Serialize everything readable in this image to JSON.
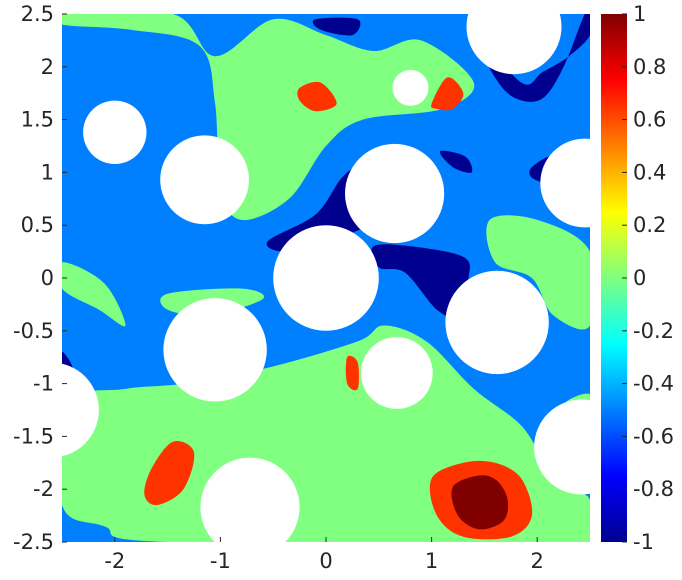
{
  "chart_data": {
    "type": "heatmap",
    "title": "",
    "xlabel": "",
    "ylabel": "",
    "xlim": [
      -2.5,
      2.5
    ],
    "ylim": [
      -2.5,
      2.5
    ],
    "x_ticks": [
      -2,
      -1,
      0,
      1,
      2
    ],
    "y_ticks": [
      2.5,
      2,
      1.5,
      1,
      0.5,
      0,
      -0.5,
      -1,
      -1.5,
      -2,
      -2.5
    ],
    "x_tick_labels": [
      "-2",
      "-1",
      "0",
      "1",
      "2"
    ],
    "y_tick_labels": [
      "2.5",
      "2",
      "1.5",
      "1",
      "0.5",
      "0",
      "-0.5",
      "-1",
      "-1.5",
      "-2",
      "-2.5"
    ],
    "colorbar": {
      "range": [
        -1,
        1
      ],
      "colormap": "jet",
      "ticks": [
        1,
        0.8,
        0.6,
        0.4,
        0.2,
        0,
        -0.2,
        -0.4,
        -0.6,
        -0.8,
        -1
      ],
      "tick_labels": [
        "1",
        "0.8",
        "0.6",
        "0.4",
        "0.2",
        "0",
        "-0.2",
        "-0.4",
        "-0.6",
        "-0.8",
        "-1"
      ]
    },
    "background_level": -0.5,
    "obstacles": [
      {
        "cx": 1.78,
        "cy": 2.38,
        "r": 0.45
      },
      {
        "cx": 0.8,
        "cy": 1.8,
        "r": 0.17
      },
      {
        "cx": -2.0,
        "cy": 1.38,
        "r": 0.3
      },
      {
        "cx": -1.15,
        "cy": 0.93,
        "r": 0.42
      },
      {
        "cx": 0.65,
        "cy": 0.8,
        "r": 0.47
      },
      {
        "cx": 2.45,
        "cy": 0.9,
        "r": 0.42
      },
      {
        "cx": 0.0,
        "cy": 0.0,
        "r": 0.5
      },
      {
        "cx": 1.62,
        "cy": -0.42,
        "r": 0.49
      },
      {
        "cx": -1.05,
        "cy": -0.68,
        "r": 0.49
      },
      {
        "cx": 0.67,
        "cy": -0.9,
        "r": 0.34
      },
      {
        "cx": -2.6,
        "cy": -1.25,
        "r": 0.45
      },
      {
        "cx": 2.42,
        "cy": -1.6,
        "r": 0.45
      },
      {
        "cx": -0.72,
        "cy": -2.17,
        "r": 0.47
      }
    ],
    "regions": [
      {
        "level": 0,
        "points": [
          [
            -2.5,
            2.5
          ],
          [
            -1.45,
            2.5
          ],
          [
            -1.05,
            2.1
          ],
          [
            -0.5,
            2.45
          ],
          [
            0.0,
            2.3
          ],
          [
            0.45,
            2.15
          ],
          [
            0.9,
            2.25
          ],
          [
            1.4,
            1.85
          ],
          [
            1.1,
            1.6
          ],
          [
            0.35,
            1.5
          ],
          [
            0.0,
            1.25
          ],
          [
            -0.35,
            0.75
          ],
          [
            -0.8,
            0.55
          ],
          [
            -1.0,
            0.85
          ],
          [
            -1.05,
            1.65
          ],
          [
            -1.2,
            2.2
          ],
          [
            -1.85,
            2.35
          ],
          [
            -2.5,
            2.4
          ]
        ]
      },
      {
        "level": 0,
        "points": [
          [
            -2.5,
            0.15
          ],
          [
            -2.1,
            -0.05
          ],
          [
            -1.9,
            -0.45
          ],
          [
            -2.15,
            -0.3
          ],
          [
            -2.5,
            -0.1
          ]
        ]
      },
      {
        "level": 0,
        "points": [
          [
            -1.5,
            -0.15
          ],
          [
            -0.8,
            -0.1
          ],
          [
            -0.6,
            -0.2
          ],
          [
            -1.1,
            -0.35
          ],
          [
            -1.5,
            -0.3
          ]
        ]
      },
      {
        "level": 0,
        "points": [
          [
            1.55,
            0.55
          ],
          [
            2.0,
            0.55
          ],
          [
            2.5,
            0.25
          ],
          [
            2.5,
            -0.45
          ],
          [
            2.15,
            -0.35
          ],
          [
            1.95,
            0.0
          ],
          [
            1.6,
            0.15
          ]
        ]
      },
      {
        "level": 0,
        "points": [
          [
            -2.5,
            -1.2
          ],
          [
            -1.9,
            -1.05
          ],
          [
            -1.35,
            -1.0
          ],
          [
            -0.55,
            -0.85
          ],
          [
            0.3,
            -0.6
          ],
          [
            0.55,
            -0.45
          ],
          [
            0.95,
            -0.6
          ],
          [
            1.4,
            -1.05
          ],
          [
            1.85,
            -1.4
          ],
          [
            2.1,
            -1.8
          ],
          [
            2.3,
            -2.0
          ],
          [
            2.5,
            -2.1
          ],
          [
            2.5,
            -2.5
          ],
          [
            -1.5,
            -2.5
          ],
          [
            -2.1,
            -2.35
          ],
          [
            -2.5,
            -2.15
          ]
        ]
      },
      {
        "level": 0,
        "points": [
          [
            2.25,
            -1.2
          ],
          [
            2.5,
            -1.1
          ],
          [
            2.5,
            -1.35
          ],
          [
            2.3,
            -1.45
          ]
        ]
      },
      {
        "level": -1,
        "points": [
          [
            -0.1,
            2.45
          ],
          [
            0.3,
            2.45
          ],
          [
            0.25,
            2.3
          ],
          [
            -0.05,
            2.35
          ]
        ]
      },
      {
        "level": -1,
        "points": [
          [
            1.4,
            2.35
          ],
          [
            1.6,
            1.9
          ],
          [
            1.8,
            1.7
          ],
          [
            2.05,
            1.7
          ],
          [
            2.25,
            2.0
          ],
          [
            2.45,
            2.5
          ],
          [
            2.5,
            2.5
          ],
          [
            2.5,
            2.3
          ],
          [
            2.3,
            2.1
          ],
          [
            2.05,
            1.95
          ],
          [
            1.85,
            1.85
          ]
        ]
      },
      {
        "level": -1,
        "points": [
          [
            -0.55,
            0.35
          ],
          [
            -0.1,
            0.6
          ],
          [
            0.15,
            0.95
          ],
          [
            0.3,
            1.0
          ],
          [
            0.4,
            0.55
          ],
          [
            0.3,
            0.45
          ],
          [
            -0.05,
            0.35
          ],
          [
            -0.4,
            0.25
          ]
        ]
      },
      {
        "level": -1,
        "points": [
          [
            0.45,
            0.3
          ],
          [
            0.8,
            0.3
          ],
          [
            1.3,
            0.2
          ],
          [
            1.35,
            0.0
          ],
          [
            1.25,
            -0.35
          ],
          [
            1.05,
            -0.3
          ],
          [
            0.75,
            0.05
          ],
          [
            0.5,
            0.1
          ]
        ]
      },
      {
        "level": -1,
        "points": [
          [
            1.08,
            1.2
          ],
          [
            1.32,
            1.15
          ],
          [
            1.38,
            1.0
          ],
          [
            1.2,
            1.05
          ]
        ]
      },
      {
        "level": -1,
        "points": [
          [
            1.95,
            1.05
          ],
          [
            2.15,
            1.15
          ],
          [
            2.15,
            0.9
          ],
          [
            1.95,
            0.95
          ]
        ]
      },
      {
        "level": -1,
        "points": [
          [
            -2.5,
            -0.7
          ],
          [
            -2.4,
            -0.85
          ],
          [
            -2.5,
            -0.9
          ]
        ]
      },
      {
        "level": 0.65,
        "points": [
          [
            -0.25,
            1.8
          ],
          [
            -0.05,
            1.85
          ],
          [
            0.1,
            1.65
          ],
          [
            -0.1,
            1.58
          ],
          [
            -0.25,
            1.68
          ]
        ]
      },
      {
        "level": 0.65,
        "points": [
          [
            1.0,
            1.65
          ],
          [
            1.15,
            1.9
          ],
          [
            1.3,
            1.75
          ],
          [
            1.2,
            1.6
          ],
          [
            1.05,
            1.6
          ]
        ]
      },
      {
        "level": 0.65,
        "points": [
          [
            0.2,
            -0.75
          ],
          [
            0.3,
            -0.8
          ],
          [
            0.3,
            -1.05
          ],
          [
            0.2,
            -1.0
          ]
        ]
      },
      {
        "level": 0.65,
        "points": [
          [
            -1.65,
            -1.8
          ],
          [
            -1.45,
            -1.55
          ],
          [
            -1.25,
            -1.65
          ],
          [
            -1.35,
            -2.0
          ],
          [
            -1.6,
            -2.15
          ],
          [
            -1.72,
            -2.05
          ]
        ]
      },
      {
        "level": 0.65,
        "points": [
          [
            1.0,
            -1.9
          ],
          [
            1.3,
            -1.75
          ],
          [
            1.6,
            -1.75
          ],
          [
            1.85,
            -1.9
          ],
          [
            1.95,
            -2.25
          ],
          [
            1.75,
            -2.45
          ],
          [
            1.3,
            -2.45
          ],
          [
            1.05,
            -2.25
          ]
        ]
      },
      {
        "level": 1,
        "points": [
          [
            1.2,
            -1.98
          ],
          [
            1.45,
            -1.87
          ],
          [
            1.62,
            -1.92
          ],
          [
            1.72,
            -2.1
          ],
          [
            1.68,
            -2.3
          ],
          [
            1.45,
            -2.38
          ],
          [
            1.25,
            -2.25
          ]
        ]
      }
    ]
  }
}
